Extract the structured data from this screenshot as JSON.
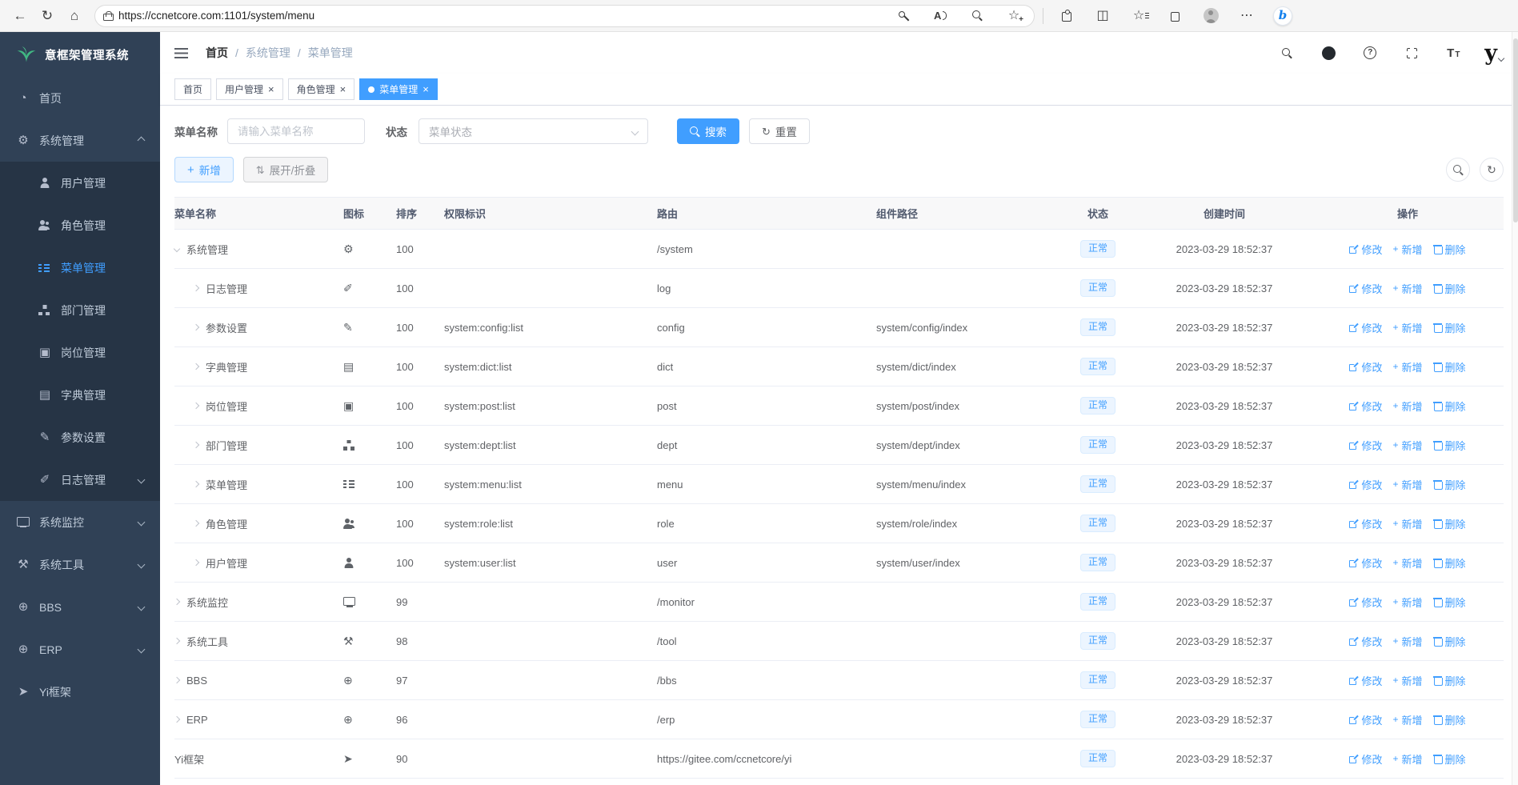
{
  "browser": {
    "url": "https://ccnetcore.com:1101/system/menu",
    "left_icons": [
      "back-icon",
      "refresh-icon",
      "home-icon"
    ],
    "pill_icons": [
      "key-icon",
      "read-aloud-icon",
      "zoom-out-icon",
      "add-favorite-icon"
    ],
    "right_icons": [
      "extensions-icon",
      "split-screen-icon",
      "favorites-icon",
      "collections-icon",
      "profile-icon",
      "more-icon",
      "copilot-icon"
    ]
  },
  "sidebar": {
    "title": "意框架管理系统",
    "items": [
      {
        "key": "home",
        "label": "首页",
        "icon": "dashboard-icon"
      },
      {
        "key": "system",
        "label": "系统管理",
        "icon": "gear-icon",
        "chevron": "up"
      },
      {
        "key": "user",
        "label": "用户管理",
        "icon": "user-icon",
        "sub": true
      },
      {
        "key": "role",
        "label": "角色管理",
        "icon": "peoples-icon",
        "sub": true
      },
      {
        "key": "menu",
        "label": "菜单管理",
        "icon": "tree-table-icon",
        "sub": true,
        "active": true
      },
      {
        "key": "dept",
        "label": "部门管理",
        "icon": "org-tree-icon",
        "sub": true
      },
      {
        "key": "post",
        "label": "岗位管理",
        "icon": "post-icon",
        "sub": true
      },
      {
        "key": "dict",
        "label": "字典管理",
        "icon": "dict-icon",
        "sub": true
      },
      {
        "key": "config",
        "label": "参数设置",
        "icon": "edit-icon",
        "sub": true
      },
      {
        "key": "log",
        "label": "日志管理",
        "icon": "log-icon",
        "sub": true,
        "chevron": "down"
      },
      {
        "key": "monitor",
        "label": "系统监控",
        "icon": "monitor-icon",
        "chevron": "down"
      },
      {
        "key": "tool",
        "label": "系统工具",
        "icon": "tool-icon",
        "chevron": "down"
      },
      {
        "key": "bbs",
        "label": "BBS",
        "icon": "globe-icon",
        "chevron": "down"
      },
      {
        "key": "erp",
        "label": "ERP",
        "icon": "globe-icon",
        "chevron": "down"
      },
      {
        "key": "yi",
        "label": "Yi框架",
        "icon": "send-icon"
      }
    ]
  },
  "header": {
    "breadcrumb": [
      "首页",
      "系统管理",
      "菜单管理"
    ],
    "right_icons": [
      "search-icon",
      "github-icon",
      "help-icon",
      "fullscreen-icon",
      "font-size-icon"
    ],
    "logo_text": "y"
  },
  "tabs": [
    {
      "key": "home",
      "label": "首页"
    },
    {
      "key": "user",
      "label": "用户管理",
      "closable": true
    },
    {
      "key": "role",
      "label": "角色管理",
      "closable": true
    },
    {
      "key": "menu",
      "label": "菜单管理",
      "closable": true,
      "active": true
    }
  ],
  "filters": {
    "name_label": "菜单名称",
    "name_placeholder": "请输入菜单名称",
    "status_label": "状态",
    "status_placeholder": "菜单状态",
    "search_label": "搜索",
    "reset_label": "重置"
  },
  "toolbar": {
    "add_label": "新增",
    "fold_label": "展开/折叠"
  },
  "table": {
    "columns": [
      "菜单名称",
      "图标",
      "排序",
      "权限标识",
      "路由",
      "组件路径",
      "状态",
      "创建时间",
      "操作"
    ],
    "row_actions": [
      {
        "key": "edit",
        "label": "修改",
        "icon": "edit-square-icon"
      },
      {
        "key": "add",
        "label": "新增",
        "icon": "plus-icon"
      },
      {
        "key": "delete",
        "label": "删除",
        "icon": "trash-icon"
      }
    ],
    "rows": [
      {
        "caret": "down",
        "indent": 0,
        "name": "系统管理",
        "icon": "gear-icon",
        "sort": "100",
        "perms": "",
        "route": "/system",
        "component": "",
        "status": "正常",
        "created": "2023-03-29 18:52:37"
      },
      {
        "caret": "right",
        "indent": 1,
        "name": "日志管理",
        "icon": "log-icon",
        "sort": "100",
        "perms": "",
        "route": "log",
        "component": "",
        "status": "正常",
        "created": "2023-03-29 18:52:37"
      },
      {
        "caret": "right",
        "indent": 1,
        "name": "参数设置",
        "icon": "edit-icon",
        "sort": "100",
        "perms": "system:config:list",
        "route": "config",
        "component": "system/config/index",
        "status": "正常",
        "created": "2023-03-29 18:52:37"
      },
      {
        "caret": "right",
        "indent": 1,
        "name": "字典管理",
        "icon": "dict-icon",
        "sort": "100",
        "perms": "system:dict:list",
        "route": "dict",
        "component": "system/dict/index",
        "status": "正常",
        "created": "2023-03-29 18:52:37"
      },
      {
        "caret": "right",
        "indent": 1,
        "name": "岗位管理",
        "icon": "post-icon",
        "sort": "100",
        "perms": "system:post:list",
        "route": "post",
        "component": "system/post/index",
        "status": "正常",
        "created": "2023-03-29 18:52:37"
      },
      {
        "caret": "right",
        "indent": 1,
        "name": "部门管理",
        "icon": "org-tree-icon",
        "sort": "100",
        "perms": "system:dept:list",
        "route": "dept",
        "component": "system/dept/index",
        "status": "正常",
        "created": "2023-03-29 18:52:37"
      },
      {
        "caret": "right",
        "indent": 1,
        "name": "菜单管理",
        "icon": "tree-table-icon",
        "sort": "100",
        "perms": "system:menu:list",
        "route": "menu",
        "component": "system/menu/index",
        "status": "正常",
        "created": "2023-03-29 18:52:37"
      },
      {
        "caret": "right",
        "indent": 1,
        "name": "角色管理",
        "icon": "peoples-icon",
        "sort": "100",
        "perms": "system:role:list",
        "route": "role",
        "component": "system/role/index",
        "status": "正常",
        "created": "2023-03-29 18:52:37"
      },
      {
        "caret": "right",
        "indent": 1,
        "name": "用户管理",
        "icon": "user-icon",
        "sort": "100",
        "perms": "system:user:list",
        "route": "user",
        "component": "system/user/index",
        "status": "正常",
        "created": "2023-03-29 18:52:37"
      },
      {
        "caret": "right",
        "indent": 0,
        "name": "系统监控",
        "icon": "monitor-icon",
        "sort": "99",
        "perms": "",
        "route": "/monitor",
        "component": "",
        "status": "正常",
        "created": "2023-03-29 18:52:37"
      },
      {
        "caret": "right",
        "indent": 0,
        "name": "系统工具",
        "icon": "tool-icon",
        "sort": "98",
        "perms": "",
        "route": "/tool",
        "component": "",
        "status": "正常",
        "created": "2023-03-29 18:52:37"
      },
      {
        "caret": "right",
        "indent": 0,
        "name": "BBS",
        "icon": "globe-icon",
        "sort": "97",
        "perms": "",
        "route": "/bbs",
        "component": "",
        "status": "正常",
        "created": "2023-03-29 18:52:37"
      },
      {
        "caret": "right",
        "indent": 0,
        "name": "ERP",
        "icon": "globe-icon",
        "sort": "96",
        "perms": "",
        "route": "/erp",
        "component": "",
        "status": "正常",
        "created": "2023-03-29 18:52:37"
      },
      {
        "caret": "none",
        "indent": 0,
        "name": "Yi框架",
        "icon": "send-icon",
        "sort": "90",
        "perms": "",
        "route": "https://gitee.com/ccnetcore/yi",
        "component": "",
        "status": "正常",
        "created": "2023-03-29 18:52:37"
      }
    ]
  },
  "icon_glyphs": {
    "back-icon": "←",
    "refresh-icon": "↻",
    "home-icon": "⌂",
    "split-screen-icon": "◫",
    "more-icon": "⋯",
    "dashboard-icon": "◔",
    "gear-icon": "⚙",
    "dict-icon": "▤",
    "post-icon": "▣",
    "edit-icon": "✎",
    "log-icon": "✐",
    "tool-icon": "⚒",
    "globe-icon": "⊕",
    "send-icon": "➤",
    "plus-icon": "+",
    "updown-icon": "⇅",
    "reset-icon": "↻"
  },
  "accent_colors": {
    "primary": "#409eff",
    "sidebar_bg": "#304156",
    "sidebar_sub_bg": "#263445",
    "tag_bg": "#ecf5ff",
    "logo_green": "#41b883"
  }
}
